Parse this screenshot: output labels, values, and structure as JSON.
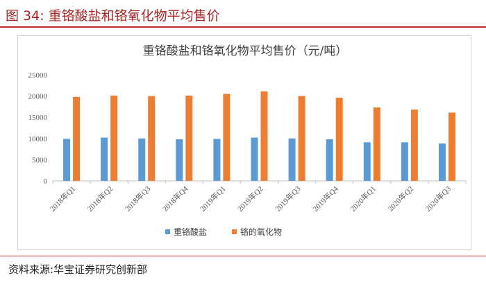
{
  "figure": {
    "label": "图 34:",
    "title": "重铬酸盐和铬氧化物平均售价",
    "source": "资料来源:华宝证券研究创新部"
  },
  "colors": {
    "accent_red": "#c0272d",
    "series_blue": "#5b9bd5",
    "series_orange": "#ed7d31"
  },
  "chart_data": {
    "type": "bar",
    "title": "重铬酸盐和铬氧化物平均售价（元/吨）",
    "xlabel": "",
    "ylabel": "",
    "ylim": [
      0,
      25000
    ],
    "yticks": [
      0,
      5000,
      10000,
      15000,
      20000,
      25000
    ],
    "grid": false,
    "legend_position": "bottom",
    "categories": [
      "2018年Q1",
      "2018年Q2",
      "2018年Q3",
      "2018年Q4",
      "2019年Q1",
      "2019年Q2",
      "2019年Q3",
      "2019年Q4",
      "2020年Q1",
      "2020年Q2",
      "2020年Q3"
    ],
    "series": [
      {
        "name": "重铬酸盐",
        "color": "#5b9bd5",
        "values": [
          9900,
          10200,
          10000,
          9800,
          9900,
          10200,
          10000,
          9800,
          9100,
          9100,
          8800
        ]
      },
      {
        "name": "铬的氧化物",
        "color": "#ed7d31",
        "values": [
          19800,
          20100,
          20000,
          20100,
          20500,
          21100,
          20000,
          19600,
          17300,
          16800,
          16100
        ]
      }
    ]
  }
}
